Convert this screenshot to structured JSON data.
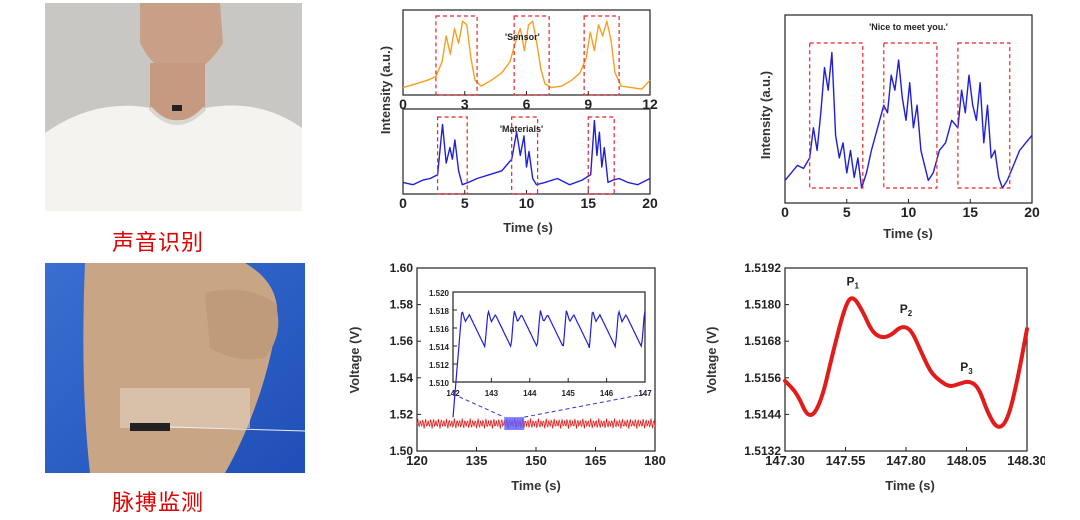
{
  "captions": {
    "voice": "声音识别",
    "pulse": "脉搏监测"
  },
  "colors": {
    "orange": "#f5a020",
    "blue": "#1f1fd8",
    "red": "#e21b1b",
    "caption": "#e00000",
    "box": "#e8252b"
  },
  "chart_data": [
    {
      "id": "sensor",
      "type": "line",
      "annotation": "'Sensor'",
      "ylabel": "Intensity (a.u.)",
      "xlim": [
        0,
        12
      ],
      "xticks": [
        "0",
        "3",
        "6",
        "9",
        "12"
      ],
      "series": [
        {
          "color": "#f5a020",
          "x": [
            0,
            0.6,
            1.2,
            1.6,
            1.9,
            2.1,
            2.3,
            2.5,
            2.7,
            2.9,
            3.1,
            3.3,
            3.5,
            3.8,
            4.3,
            4.8,
            5.2,
            5.5,
            5.7,
            5.9,
            6.1,
            6.3,
            6.5,
            6.7,
            6.9,
            7.2,
            7.7,
            8.2,
            8.6,
            8.9,
            9.1,
            9.3,
            9.5,
            9.7,
            9.9,
            10.1,
            10.3,
            10.6,
            11.1,
            11.6,
            12
          ],
          "y": [
            0.1,
            0.15,
            0.2,
            0.25,
            0.45,
            0.8,
            0.55,
            0.9,
            0.7,
            1.0,
            0.95,
            0.5,
            0.2,
            0.12,
            0.2,
            0.3,
            0.45,
            0.75,
            0.9,
            0.6,
            0.95,
            1.0,
            0.7,
            0.35,
            0.15,
            0.1,
            0.12,
            0.2,
            0.3,
            0.5,
            0.85,
            0.6,
            0.95,
            0.8,
            1.0,
            0.75,
            0.3,
            0.12,
            0.1,
            0.08,
            0.2
          ]
        }
      ]
    },
    {
      "id": "materials",
      "type": "line",
      "annotation": "'Materials'",
      "xlabel": "Time (s)",
      "xlim": [
        0,
        20
      ],
      "xticks": [
        "0",
        "5",
        "10",
        "15",
        "20"
      ],
      "series": [
        {
          "color": "#1f1fd8",
          "x": [
            0,
            0.8,
            1.6,
            2.2,
            2.8,
            3.2,
            3.5,
            3.8,
            4.0,
            4.2,
            4.5,
            4.8,
            5.3,
            6.0,
            7.0,
            8.0,
            8.8,
            9.2,
            9.5,
            9.8,
            10.0,
            10.2,
            10.5,
            10.8,
            11.5,
            12.5,
            13.5,
            14.5,
            15.2,
            15.5,
            15.7,
            15.9,
            16.1,
            16.3,
            16.6,
            17.0,
            17.5,
            18.2,
            19.0,
            20.0
          ],
          "y": [
            0.15,
            0.12,
            0.18,
            0.2,
            0.25,
            0.9,
            0.4,
            0.6,
            0.45,
            0.7,
            0.3,
            0.12,
            0.15,
            0.2,
            0.25,
            0.3,
            0.45,
            0.8,
            0.5,
            0.75,
            0.35,
            0.55,
            0.2,
            0.12,
            0.15,
            0.2,
            0.12,
            0.18,
            0.25,
            0.95,
            0.5,
            0.8,
            0.35,
            0.6,
            0.15,
            0.18,
            0.2,
            0.15,
            0.12,
            0.2
          ]
        }
      ]
    },
    {
      "id": "nice",
      "type": "line",
      "annotation": "'Nice to meet you.'",
      "xlabel": "Time (s)",
      "ylabel": "Intensity (a.u.)",
      "xlim": [
        0,
        20
      ],
      "xticks": [
        "0",
        "5",
        "10",
        "15",
        "20"
      ],
      "series": [
        {
          "color": "#1f1fd8",
          "x": [
            0,
            0.5,
            1.0,
            1.5,
            2.0,
            2.3,
            2.6,
            2.9,
            3.2,
            3.5,
            3.8,
            4.1,
            4.4,
            4.7,
            5.0,
            5.3,
            5.6,
            5.9,
            6.2,
            6.6,
            7.0,
            7.5,
            8.0,
            8.3,
            8.6,
            8.9,
            9.2,
            9.5,
            9.8,
            10.1,
            10.4,
            10.7,
            11.0,
            11.3,
            11.6,
            12.0,
            12.5,
            13.0,
            13.5,
            14.0,
            14.3,
            14.6,
            14.9,
            15.2,
            15.5,
            15.8,
            16.1,
            16.4,
            16.7,
            17.0,
            17.3,
            17.6,
            18.0,
            18.5,
            19.0,
            19.5,
            20.0
          ],
          "y": [
            0.1,
            0.15,
            0.2,
            0.18,
            0.25,
            0.45,
            0.3,
            0.55,
            0.85,
            0.7,
            0.95,
            0.4,
            0.25,
            0.35,
            0.15,
            0.3,
            0.12,
            0.25,
            0.05,
            0.15,
            0.3,
            0.45,
            0.6,
            0.55,
            0.8,
            0.7,
            0.9,
            0.65,
            0.5,
            0.75,
            0.45,
            0.6,
            0.3,
            0.2,
            0.1,
            0.15,
            0.3,
            0.35,
            0.5,
            0.45,
            0.7,
            0.55,
            0.8,
            0.6,
            0.5,
            0.75,
            0.35,
            0.6,
            0.25,
            0.3,
            0.12,
            0.05,
            0.1,
            0.2,
            0.3,
            0.35,
            0.4
          ]
        }
      ]
    },
    {
      "id": "pulse",
      "type": "line",
      "xlabel": "Time (s)",
      "ylabel": "Voltage (V)",
      "xlim": [
        120,
        180
      ],
      "ylim": [
        1.5,
        1.6
      ],
      "xticks": [
        "120",
        "135",
        "150",
        "165",
        "180"
      ],
      "yticks": [
        "1.50",
        "1.52",
        "1.54",
        "1.56",
        "1.58",
        "1.60"
      ],
      "series": [
        {
          "color": "#e21b1b",
          "description": "oscillation 1.512–1.518 V"
        }
      ],
      "inset": {
        "xlim": [
          142,
          147
        ],
        "ylim": [
          1.51,
          1.52
        ],
        "xticks": [
          "142",
          "143",
          "144",
          "145",
          "146",
          "147"
        ],
        "yticks": [
          "1.510",
          "1.512",
          "1.514",
          "1.516",
          "1.518",
          "1.520"
        ],
        "color": "#1f1fd8"
      }
    },
    {
      "id": "single",
      "type": "line",
      "xlabel": "Time (s)",
      "ylabel": "Voltage (V)",
      "xlim": [
        147.3,
        148.3
      ],
      "ylim": [
        1.5132,
        1.5192
      ],
      "xticks": [
        "147.30",
        "147.55",
        "147.80",
        "148.05",
        "148.30"
      ],
      "yticks": [
        "1.5132",
        "1.5144",
        "1.5156",
        "1.5168",
        "1.5180",
        "1.5192"
      ],
      "peaks": [
        {
          "label": "P",
          "sub": "1",
          "x": 147.58,
          "y": 1.5183
        },
        {
          "label": "P",
          "sub": "2",
          "x": 147.8,
          "y": 1.5174
        },
        {
          "label": "P",
          "sub": "3",
          "x": 148.05,
          "y": 1.5155
        }
      ],
      "series": [
        {
          "color": "#e21b1b",
          "x": [
            147.3,
            147.35,
            147.4,
            147.45,
            147.5,
            147.55,
            147.58,
            147.62,
            147.66,
            147.7,
            147.74,
            147.78,
            147.82,
            147.86,
            147.9,
            147.94,
            147.98,
            148.02,
            148.06,
            148.1,
            148.14,
            148.18,
            148.22,
            148.26,
            148.3
          ],
          "y": [
            1.5155,
            1.5151,
            1.5142,
            1.5148,
            1.5165,
            1.518,
            1.5183,
            1.5178,
            1.5171,
            1.5169,
            1.517,
            1.5173,
            1.5172,
            1.5165,
            1.5158,
            1.5155,
            1.5153,
            1.5154,
            1.5155,
            1.5153,
            1.5144,
            1.5139,
            1.5142,
            1.5155,
            1.5172
          ]
        }
      ]
    }
  ]
}
